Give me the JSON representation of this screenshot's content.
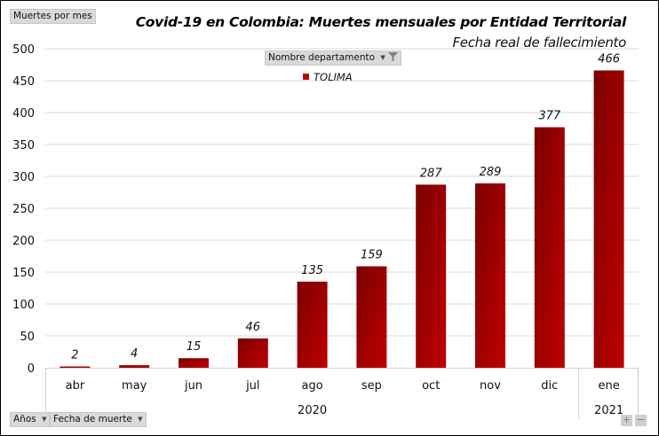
{
  "pivot": {
    "values_field": "Muertes por mes",
    "filter_field": "Nombre departamento",
    "axis_fields": [
      "Años",
      "Fecha de muerte"
    ],
    "expand_label": "+",
    "collapse_label": "−"
  },
  "colors": {
    "bar_dark": "#7a0000",
    "bar_light": "#c00000",
    "grid": "#d9d9d9"
  },
  "chart_data": {
    "type": "bar",
    "title": "Covid-19 en Colombia: Muertes mensuales por Entidad Territorial",
    "subtitle": "Fecha real de fallecimiento",
    "xlabel": "",
    "ylabel": "Muertes por mes",
    "ylim": [
      0,
      500
    ],
    "yticks": [
      0,
      50,
      100,
      150,
      200,
      250,
      300,
      350,
      400,
      450,
      500
    ],
    "grid": true,
    "legend_position": "top-center",
    "categories": [
      "abr",
      "may",
      "jun",
      "jul",
      "ago",
      "sep",
      "oct",
      "nov",
      "dic",
      "ene"
    ],
    "groups": [
      {
        "label": "2020",
        "count": 9
      },
      {
        "label": "2021",
        "count": 1
      }
    ],
    "series": [
      {
        "name": "TOLIMA",
        "values": [
          2,
          4,
          15,
          46,
          135,
          159,
          287,
          289,
          377,
          466
        ]
      }
    ],
    "data_labels": true
  }
}
